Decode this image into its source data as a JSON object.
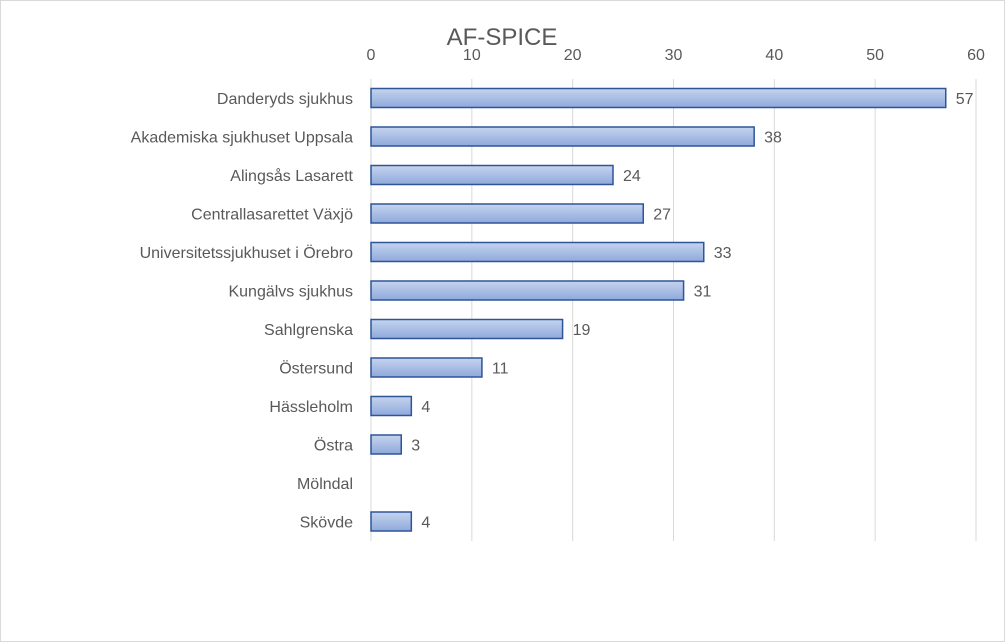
{
  "chart_data": {
    "type": "bar",
    "orientation": "horizontal",
    "title": "AF-SPICE",
    "xlabel": "",
    "ylabel": "",
    "categories": [
      "Danderyds sjukhus",
      "Akademiska sjukhuset Uppsala",
      "Alingsås Lasarett",
      "Centrallasarettet Växjö",
      "Universitetssjukhuset i Örebro",
      "Kungälvs sjukhus",
      "Sahlgrenska",
      "Östersund",
      "Hässleholm",
      "Östra",
      "Mölndal",
      "Skövde"
    ],
    "values": [
      57,
      38,
      24,
      27,
      33,
      31,
      19,
      11,
      4,
      3,
      null,
      4
    ],
    "xlim": [
      0,
      60
    ],
    "x_ticks": [
      0,
      10,
      20,
      30,
      40,
      50,
      60
    ],
    "x_axis_position": "top",
    "grid": "vertical",
    "legend": "none",
    "data_labels": true,
    "colors": {
      "bar_fill_light": "#b4c7e7",
      "bar_fill_dark": "#8faadc",
      "bar_stroke": "#2f5597",
      "grid": "#d9d9d9",
      "text": "#595959"
    }
  }
}
